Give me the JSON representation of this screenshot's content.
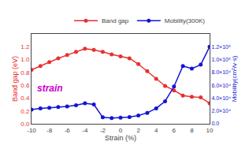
{
  "chart_data": {
    "type": "line",
    "xlabel": "Strain (%)",
    "ylabel": "Band gap (eV)",
    "y2label": "Mobility(cm²/v·s)",
    "x": [
      -10,
      -9,
      -8,
      -7,
      -6,
      -5,
      -4,
      -3,
      -2,
      -1,
      0,
      1,
      2,
      3,
      4,
      5,
      6,
      7,
      8,
      9,
      10
    ],
    "series": [
      {
        "name": "Band gap",
        "color": "#e83030",
        "marker": "circle",
        "values": [
          0.84,
          0.9,
          0.96,
          1.02,
          1.07,
          1.12,
          1.17,
          1.15,
          1.12,
          1.08,
          1.05,
          1.02,
          0.93,
          0.82,
          0.7,
          0.59,
          0.52,
          0.44,
          0.42,
          0.41,
          0.32
        ]
      },
      {
        "name": "Mobility(300K)",
        "color": "#1414d4",
        "marker": "circle",
        "axis": "y2",
        "values": [
          22000,
          24000,
          25000,
          26000,
          27000,
          29000,
          32000,
          30000,
          10000,
          9000,
          9500,
          10500,
          13000,
          17000,
          24000,
          35000,
          58000,
          90000,
          86000,
          92000,
          120000
        ]
      }
    ],
    "xlim": [
      -10,
      10
    ],
    "xticks": [
      -10,
      -8,
      -6,
      -4,
      -2,
      0,
      2,
      4,
      6,
      8,
      10
    ],
    "ylim": [
      0.0,
      1.4
    ],
    "yticks": [
      {
        "value": 0.0,
        "label": "0.0"
      },
      0.2,
      0.4,
      0.6,
      0.8,
      {
        "value": 1.0,
        "label": "1.0"
      },
      1.2
    ],
    "y2lim": [
      0,
      140000
    ],
    "y2ticks": [
      {
        "value": 0,
        "label": "0.0"
      },
      {
        "value": 20000,
        "label": "2.0×10⁴"
      },
      {
        "value": 40000,
        "label": "4.0×10⁴"
      },
      {
        "value": 60000,
        "label": "6.0×10⁴"
      },
      {
        "value": 80000,
        "label": "8.0×10⁴"
      },
      {
        "value": 100000,
        "label": "1.0×10⁵"
      },
      {
        "value": 120000,
        "label": "1.2×10⁵"
      }
    ],
    "annotations": [
      {
        "text": "strain",
        "color": "#cc00cc"
      }
    ],
    "legend": "upper right",
    "grid": false
  }
}
